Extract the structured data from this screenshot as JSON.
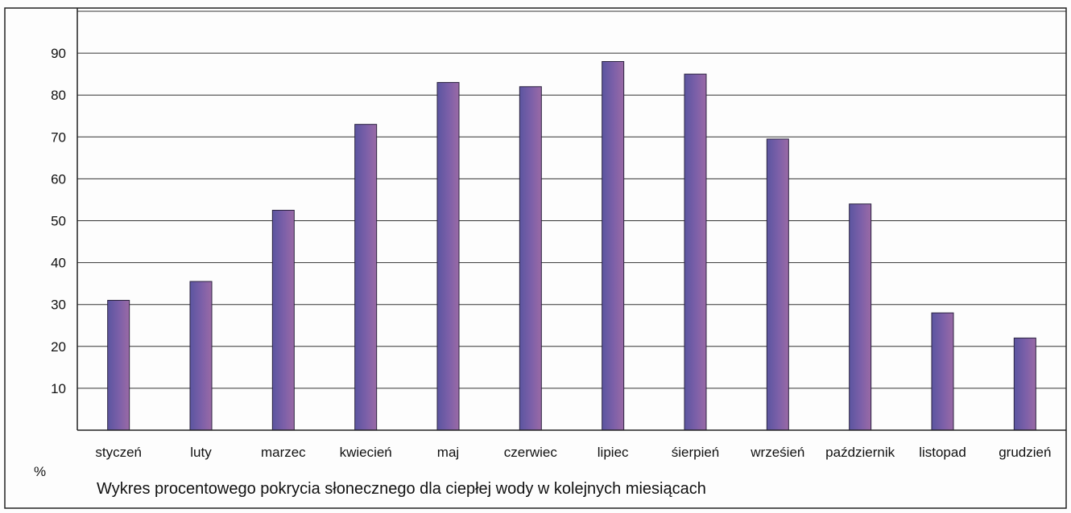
{
  "chart_data": {
    "type": "bar",
    "title": "Wykres procentowego pokrycia słonecznego dla ciepłej wody w kolejnych miesiącach",
    "ylabel": "%",
    "xlabel": "",
    "ylim": [
      0,
      100
    ],
    "yticks": [
      10,
      20,
      30,
      40,
      50,
      60,
      70,
      80,
      90
    ],
    "grid": true,
    "categories": [
      "styczeń",
      "luty",
      "marzec",
      "kwiecień",
      "maj",
      "czerwiec",
      "lipiec",
      "śierpień",
      "wrześień",
      "październik",
      "listopad",
      "grudzień"
    ],
    "values": [
      31,
      35.5,
      52.5,
      73,
      83,
      82,
      88,
      85,
      69.5,
      54,
      28,
      22
    ],
    "bar_color": "#7b5fa8"
  }
}
